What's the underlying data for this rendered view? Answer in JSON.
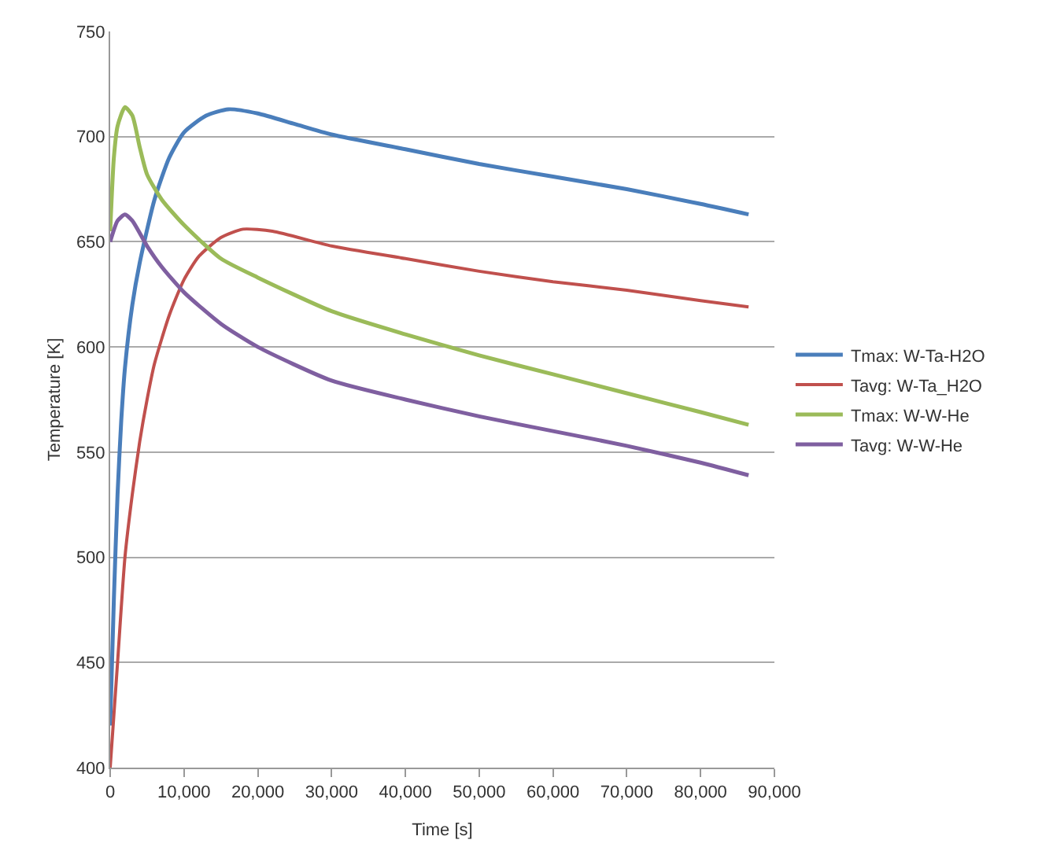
{
  "chart_data": {
    "type": "line",
    "xlabel": "Time [s]",
    "ylabel": "Temperature [K]",
    "xlim": [
      0,
      90000
    ],
    "xticks": [
      {
        "value": 0,
        "label": "0"
      },
      {
        "value": 10000,
        "label": "10,000"
      },
      {
        "value": 20000,
        "label": "20,000"
      },
      {
        "value": 30000,
        "label": "30,000"
      },
      {
        "value": 40000,
        "label": "40,000"
      },
      {
        "value": 50000,
        "label": "50,000"
      },
      {
        "value": 60000,
        "label": "60,000"
      },
      {
        "value": 70000,
        "label": "70,000"
      },
      {
        "value": 80000,
        "label": "80,000"
      },
      {
        "value": 90000,
        "label": "90,000"
      }
    ],
    "ylim": [
      400,
      750
    ],
    "yticks": [
      400,
      450,
      500,
      550,
      600,
      650,
      700,
      750
    ],
    "grid": "y",
    "legend": "right",
    "marker": "none",
    "line_style": "solid",
    "series": [
      {
        "name": "Tmax: W-Ta-H2O",
        "color": "#4a7ebb",
        "x": [
          0,
          500,
          1000,
          1500,
          2000,
          3000,
          4000,
          6000,
          8000,
          10000,
          13000,
          16000,
          20000,
          25000,
          30000,
          40000,
          50000,
          60000,
          70000,
          80000,
          86500
        ],
        "values": [
          420,
          480,
          530,
          565,
          590,
          620,
          640,
          670,
          690,
          702,
          710,
          713,
          711,
          706,
          701,
          694,
          687,
          681,
          675,
          668,
          663
        ]
      },
      {
        "name": "Tavg: W-Ta_H2O",
        "color": "#c0504d",
        "x": [
          0,
          1000,
          2000,
          3000,
          4000,
          5000,
          6000,
          8000,
          10000,
          12000,
          15000,
          18000,
          22000,
          30000,
          40000,
          50000,
          60000,
          70000,
          80000,
          86500
        ],
        "values": [
          400,
          450,
          500,
          530,
          555,
          575,
          592,
          615,
          632,
          643,
          652,
          656,
          655,
          648,
          642,
          636,
          631,
          627,
          622,
          619
        ]
      },
      {
        "name": "Tmax: W-W-He",
        "color": "#9bbb59",
        "x": [
          0,
          500,
          1000,
          2000,
          3000,
          4000,
          5000,
          7000,
          10000,
          15000,
          20000,
          30000,
          40000,
          50000,
          60000,
          70000,
          80000,
          86500
        ],
        "values": [
          655,
          690,
          705,
          714,
          710,
          695,
          682,
          670,
          658,
          642,
          633,
          617,
          606,
          596,
          587,
          578,
          569,
          563
        ]
      },
      {
        "name": "Tavg: W-W-He",
        "color": "#7f5fa0",
        "x": [
          0,
          1000,
          2000,
          3000,
          5000,
          7000,
          10000,
          15000,
          20000,
          30000,
          40000,
          50000,
          60000,
          70000,
          80000,
          86500
        ],
        "values": [
          650,
          660,
          663,
          660,
          648,
          638,
          626,
          611,
          600,
          584,
          575,
          567,
          560,
          553,
          545,
          539
        ]
      }
    ]
  }
}
